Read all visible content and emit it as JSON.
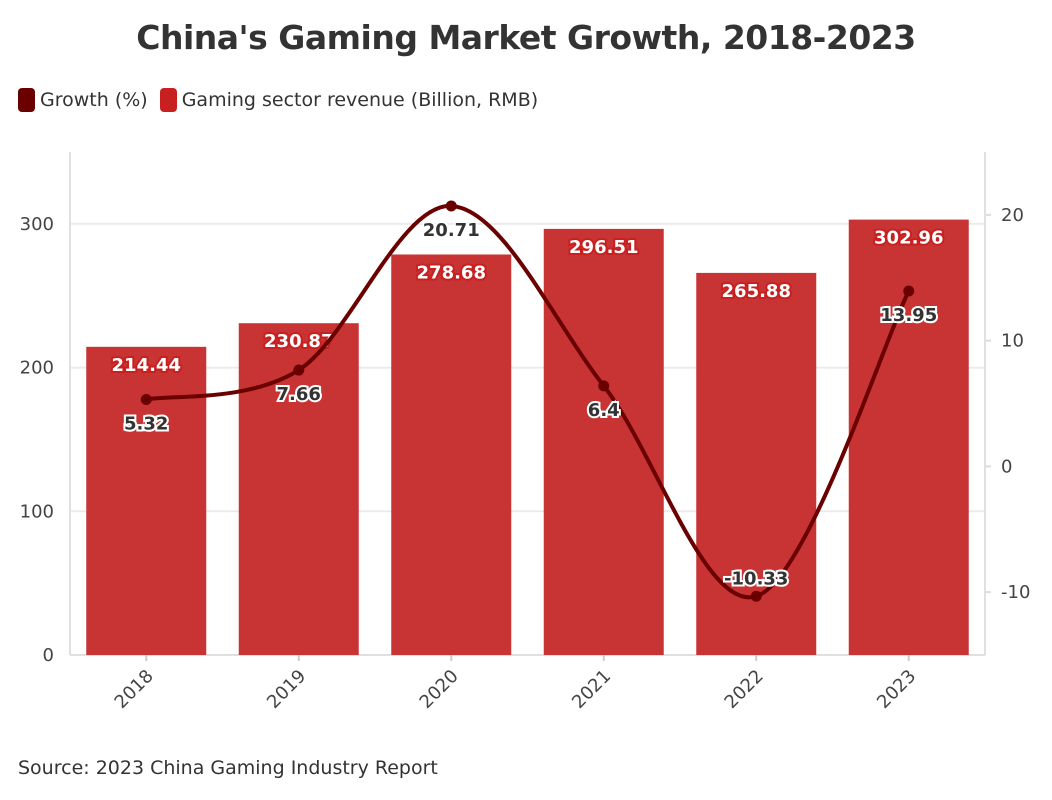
{
  "chart_data": {
    "type": "bar+line",
    "title": "China's Gaming Market Growth, 2018-2023",
    "source": "Source: 2023 China Gaming Industry Report",
    "categories": [
      "2018",
      "2019",
      "2020",
      "2021",
      "2022",
      "2023"
    ],
    "series": [
      {
        "name": "Growth (%)",
        "type": "line",
        "axis": "right",
        "color": "#6b0000",
        "values": [
          5.32,
          7.66,
          20.71,
          6.4,
          -10.33,
          13.95
        ]
      },
      {
        "name": "Gaming sector revenue (Billion, RMB)",
        "type": "bar",
        "axis": "left",
        "color": "#c83434",
        "values": [
          214.44,
          230.87,
          278.68,
          296.51,
          265.88,
          302.96
        ]
      }
    ],
    "legend_colors": [
      "#6b0000",
      "#c82020"
    ],
    "left_axis": {
      "ylim": [
        0,
        350
      ],
      "ticks": [
        0,
        100,
        200,
        300
      ]
    },
    "right_axis": {
      "ylim": [
        -15,
        25
      ],
      "ticks": [
        -10,
        0,
        10,
        20
      ]
    },
    "grid": true,
    "legend_position": "top-left"
  }
}
